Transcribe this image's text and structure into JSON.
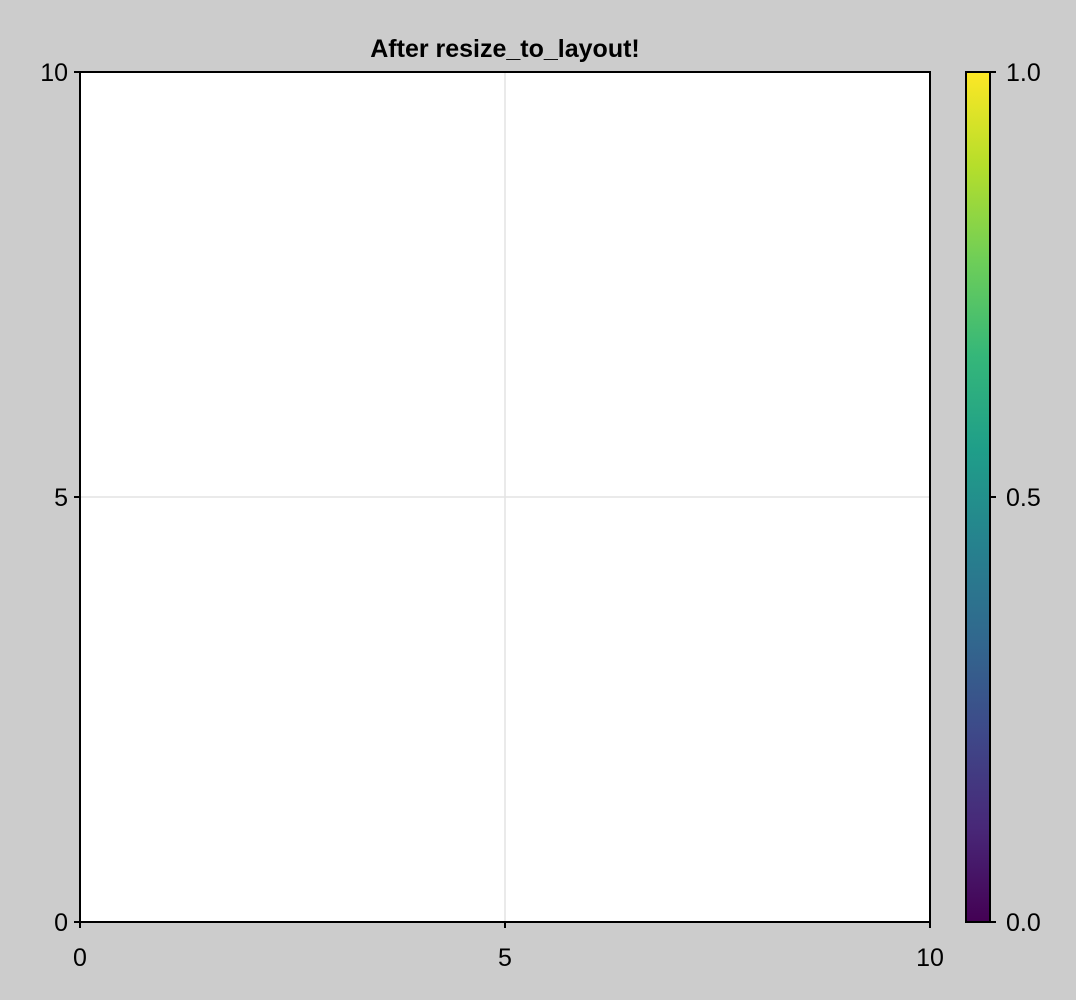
{
  "figure": {
    "background": "#cccccc"
  },
  "chart_data": {
    "type": "scatter",
    "title": "After resize_to_layout!",
    "xlabel": "",
    "ylabel": "",
    "xlim": [
      0,
      10
    ],
    "ylim": [
      0,
      10
    ],
    "xticks": [
      0,
      5,
      10
    ],
    "yticks": [
      0,
      5,
      10
    ],
    "xtick_labels": [
      "0",
      "5",
      "10"
    ],
    "ytick_labels": [
      "0",
      "5",
      "10"
    ],
    "grid": true,
    "grid_color": "#e3e3e3",
    "plot_background": "#ffffff",
    "series": [],
    "colorbar": {
      "colormap": "viridis",
      "limits": [
        0.0,
        1.0
      ],
      "ticks": [
        0.0,
        0.5,
        1.0
      ],
      "tick_labels": [
        "0.0",
        "0.5",
        "1.0"
      ],
      "stops": [
        "#440154",
        "#482878",
        "#3e4989",
        "#31688e",
        "#26828e",
        "#1f9e89",
        "#35b779",
        "#6ece58",
        "#b5de2b",
        "#fde725"
      ]
    }
  }
}
